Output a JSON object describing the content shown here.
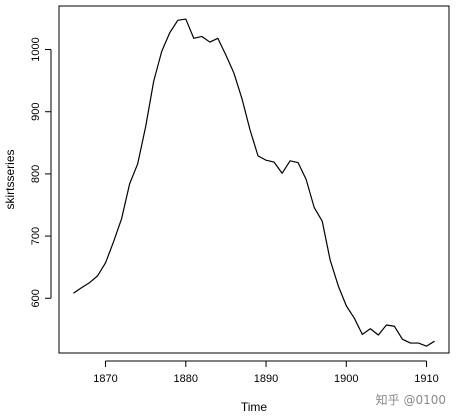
{
  "chart_data": {
    "type": "line",
    "title": "",
    "xlabel": "Time",
    "ylabel": "skirtsseries",
    "xlim": [
      1864.2,
      1912.8
    ],
    "ylim": [
      512,
      1070
    ],
    "xticks": [
      1870,
      1880,
      1890,
      1900,
      1910
    ],
    "yticks": [
      600,
      700,
      800,
      900,
      1000
    ],
    "grid": false,
    "series": [
      {
        "x": [
          1866,
          1867,
          1868,
          1869,
          1870,
          1871,
          1872,
          1873,
          1874,
          1875,
          1876,
          1877,
          1878,
          1879,
          1880,
          1881,
          1882,
          1883,
          1884,
          1885,
          1886,
          1887,
          1888,
          1889,
          1890,
          1891,
          1892,
          1893,
          1894,
          1895,
          1896,
          1897,
          1898,
          1899,
          1900,
          1901,
          1902,
          1903,
          1904,
          1905,
          1906,
          1907,
          1908,
          1909,
          1910,
          1911
        ],
        "values": [
          608,
          617,
          625,
          636,
          657,
          691,
          728,
          784,
          816,
          876,
          949,
          997,
          1027,
          1047,
          1049,
          1018,
          1021,
          1012,
          1018,
          991,
          962,
          921,
          871,
          829,
          822,
          819,
          801,
          821,
          818,
          791,
          746,
          724,
          661,
          620,
          588,
          568,
          542,
          551,
          541,
          557,
          555,
          534,
          528,
          528,
          523,
          531
        ],
        "color": "#000000"
      }
    ]
  },
  "watermark": "知乎 @0100"
}
